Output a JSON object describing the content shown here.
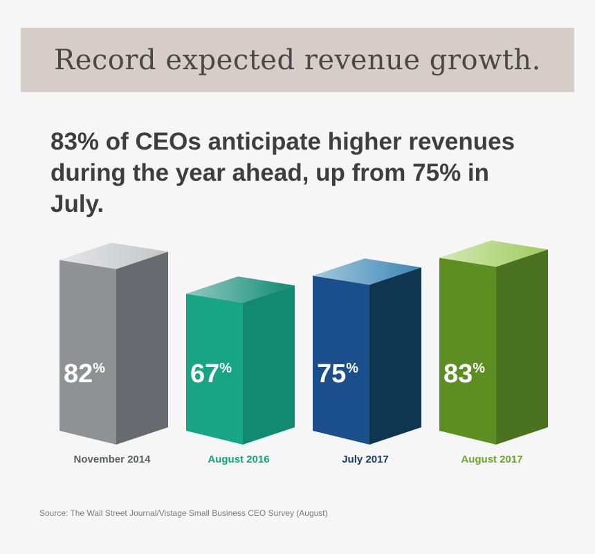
{
  "banner": {
    "title": "Record expected revenue growth."
  },
  "headline": "83% of CEOs anticipate higher revenues during the year ahead, up from 75% in July.",
  "source": "Source: The Wall Street Journal/Vistage Small Business CEO Survey (August)",
  "chart_data": {
    "type": "bar",
    "title": "",
    "xlabel": "",
    "ylabel": "",
    "categories": [
      "November 2014",
      "August 2016",
      "July 2017",
      "August 2017"
    ],
    "values": [
      82,
      67,
      75,
      83
    ],
    "value_suffix": "%",
    "ylim": [
      0,
      100
    ],
    "colors": {
      "November 2014": {
        "front": "#8f9194",
        "side": "#676b70",
        "top": "#c4c5c7",
        "label": "#5b5e62"
      },
      "August 2016": {
        "front": "#17a586",
        "side": "#118a70",
        "top": "#0f8a73",
        "label": "#14a181"
      },
      "July 2017": {
        "front": "#1b4f8c",
        "side": "#0f3550",
        "top": "#3a86b5",
        "label": "#163d63"
      },
      "August 2017": {
        "front": "#5d8e21",
        "side": "#4b7221",
        "top": "#9fcc5c",
        "label": "#6aa42c"
      }
    }
  }
}
